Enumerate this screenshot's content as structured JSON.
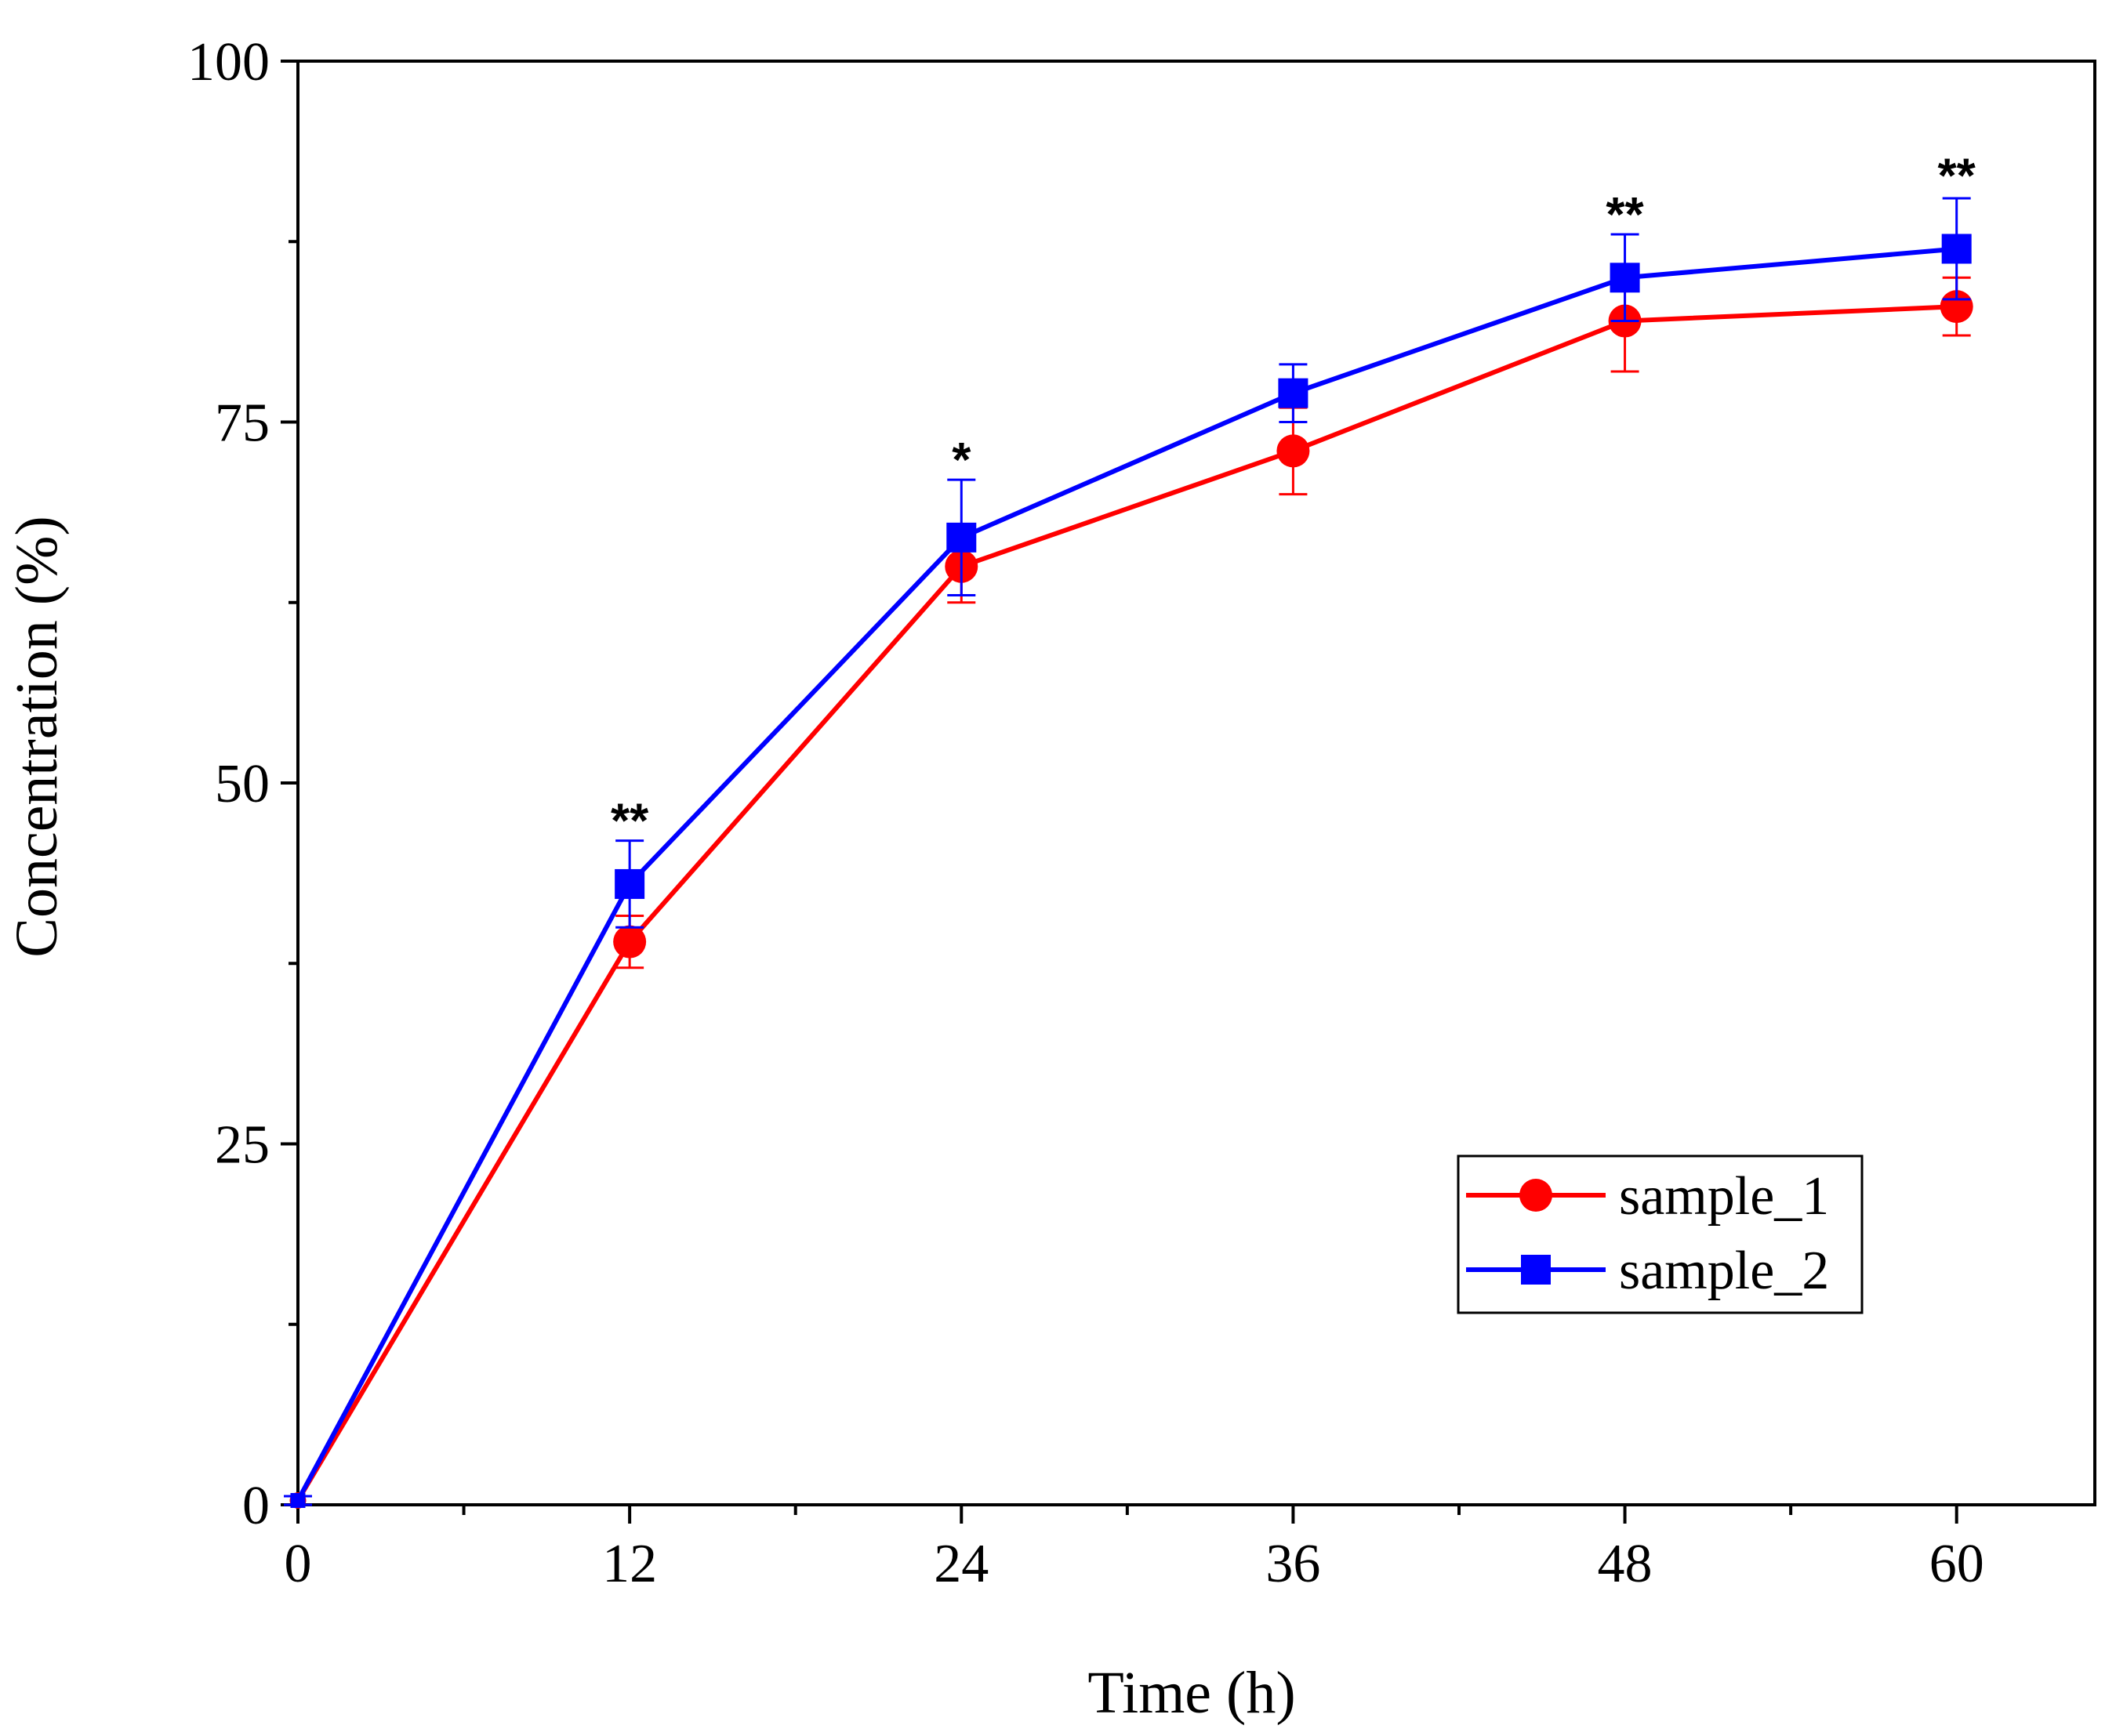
{
  "chart_data": {
    "type": "line",
    "title": "",
    "xlabel": "Time (h)",
    "ylabel": "Concentration (%)",
    "xlim": [
      0,
      65
    ],
    "ylim": [
      0,
      100
    ],
    "xticks": [
      0,
      12,
      24,
      36,
      48,
      60
    ],
    "xtick_labels": [
      "0",
      "12",
      "24",
      "36",
      "48",
      "60"
    ],
    "yticks": [
      0,
      25,
      50,
      75,
      100
    ],
    "ytick_labels": [
      "0",
      "25",
      "50",
      "75",
      "100"
    ],
    "grid": false,
    "legend_position": "lower-right",
    "x": [
      0,
      12,
      24,
      36,
      48,
      60
    ],
    "series": [
      {
        "name": "sample_1",
        "color": "#ff0000",
        "marker": "circle",
        "values": [
          0.3,
          39,
          65,
          73,
          82,
          83
        ],
        "errors": [
          0.3,
          1.8,
          2.5,
          3.0,
          3.5,
          2.0
        ]
      },
      {
        "name": "sample_2",
        "color": "#0000ff",
        "marker": "square",
        "values": [
          0.3,
          43,
          67,
          77,
          85,
          87
        ],
        "errors": [
          0.3,
          3.0,
          4.0,
          2.0,
          3.0,
          3.5
        ]
      }
    ],
    "annotations": [
      {
        "x": 12,
        "text": "**",
        "anchor_y": 46
      },
      {
        "x": 24,
        "text": "*",
        "anchor_y": 71
      },
      {
        "x": 48,
        "text": "**",
        "anchor_y": 88
      },
      {
        "x": 60,
        "text": "**",
        "anchor_y": 90.7
      }
    ]
  }
}
